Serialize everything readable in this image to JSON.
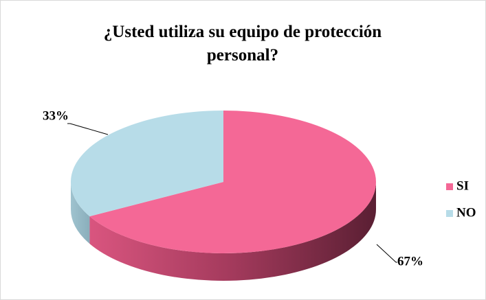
{
  "chart_data": {
    "type": "pie",
    "title": "¿Usted utiliza su equipo de protección personal?",
    "categories": [
      "SI",
      "NO"
    ],
    "values": [
      67,
      33
    ],
    "value_labels": [
      "67%",
      "33%"
    ],
    "colors": [
      "#f46896",
      "#b7dce8"
    ],
    "legend": "right"
  }
}
